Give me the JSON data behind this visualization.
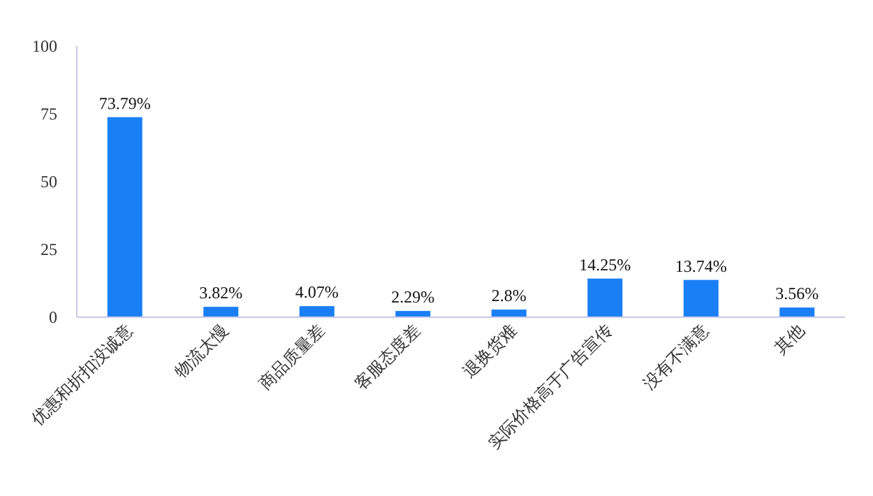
{
  "chart_data": {
    "type": "bar",
    "categories": [
      "优惠和折扣没诚意",
      "物流太慢",
      "商品质量差",
      "客服态度差",
      "退换货难",
      "实际价格高于广告宣传",
      "没有不满意",
      "其他"
    ],
    "values": [
      73.79,
      3.82,
      4.07,
      2.29,
      2.8,
      14.25,
      13.74,
      3.56
    ],
    "value_labels": [
      "73.79%",
      "3.82%",
      "4.07%",
      "2.29%",
      "2.8%",
      "14.25%",
      "13.74%",
      "3.56%"
    ],
    "color": "#1a7ff5",
    "ylim": [
      0,
      100
    ],
    "yticks": [
      0,
      25,
      50,
      75,
      100
    ],
    "grid": false
  }
}
